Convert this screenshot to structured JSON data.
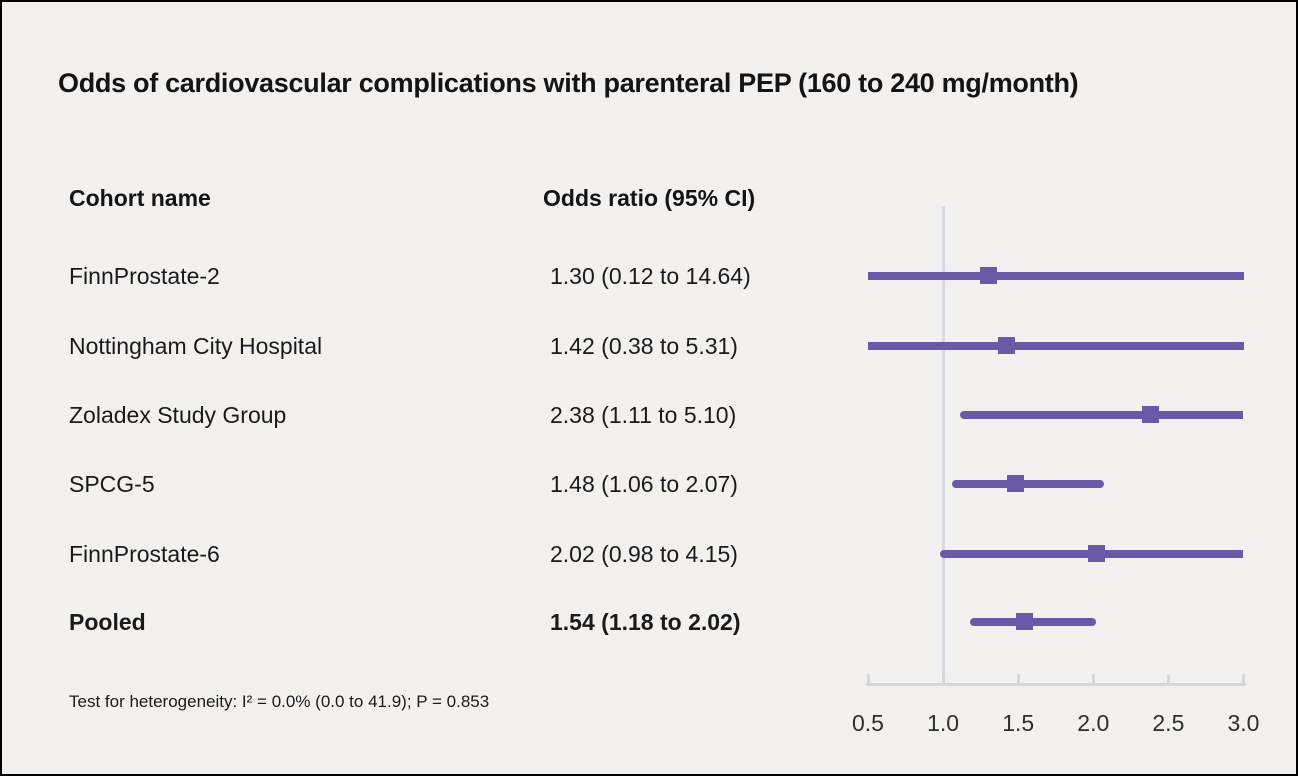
{
  "title": "Odds of cardiovascular complications with parenteral PEP (160 to 240 mg/month)",
  "columns": {
    "cohort": "Cohort name",
    "odds": "Odds ratio (95% CI)"
  },
  "footer": "Test for heterogeneity: I² = 0.0% (0.0 to 41.9); P = 0.853",
  "colors": {
    "marker": "#6a59a7",
    "reference_line": "#d6dae1",
    "axis": "#d3d7de",
    "background": "#f2f1f0",
    "text": "#1a1a1a"
  },
  "chart_data": {
    "type": "scatter",
    "subtype": "forest-plot",
    "title": "Odds of cardiovascular complications with parenteral PEP (160 to 240 mg/month)",
    "xlabel": "Odds ratio",
    "xlim": [
      0.5,
      3.0
    ],
    "reference_value": 1.0,
    "ticks": [
      0.5,
      1.0,
      1.5,
      2.0,
      2.5,
      3.0
    ],
    "tick_labels": [
      "0.5",
      "1.0",
      "1.5",
      "2.0",
      "2.5",
      "3.0"
    ],
    "rows": [
      {
        "label": "FinnProstate-2",
        "or_text": "1.30 (0.12 to 14.64)",
        "estimate": 1.3,
        "ci_low": 0.12,
        "ci_high": 14.64,
        "bold": false
      },
      {
        "label": "Nottingham City Hospital",
        "or_text": "1.42 (0.38 to 5.31)",
        "estimate": 1.42,
        "ci_low": 0.38,
        "ci_high": 5.31,
        "bold": false
      },
      {
        "label": "Zoladex Study Group",
        "or_text": "2.38 (1.11 to 5.10)",
        "estimate": 2.38,
        "ci_low": 1.11,
        "ci_high": 5.1,
        "bold": false
      },
      {
        "label": "SPCG-5",
        "or_text": "1.48 (1.06 to 2.07)",
        "estimate": 1.48,
        "ci_low": 1.06,
        "ci_high": 2.07,
        "bold": false
      },
      {
        "label": "FinnProstate-6",
        "or_text": "2.02 (0.98 to 4.15)",
        "estimate": 2.02,
        "ci_low": 0.98,
        "ci_high": 4.15,
        "bold": false
      },
      {
        "label": "Pooled",
        "or_text": "1.54 (1.18 to 2.02)",
        "estimate": 1.54,
        "ci_low": 1.18,
        "ci_high": 2.02,
        "bold": true
      }
    ]
  }
}
